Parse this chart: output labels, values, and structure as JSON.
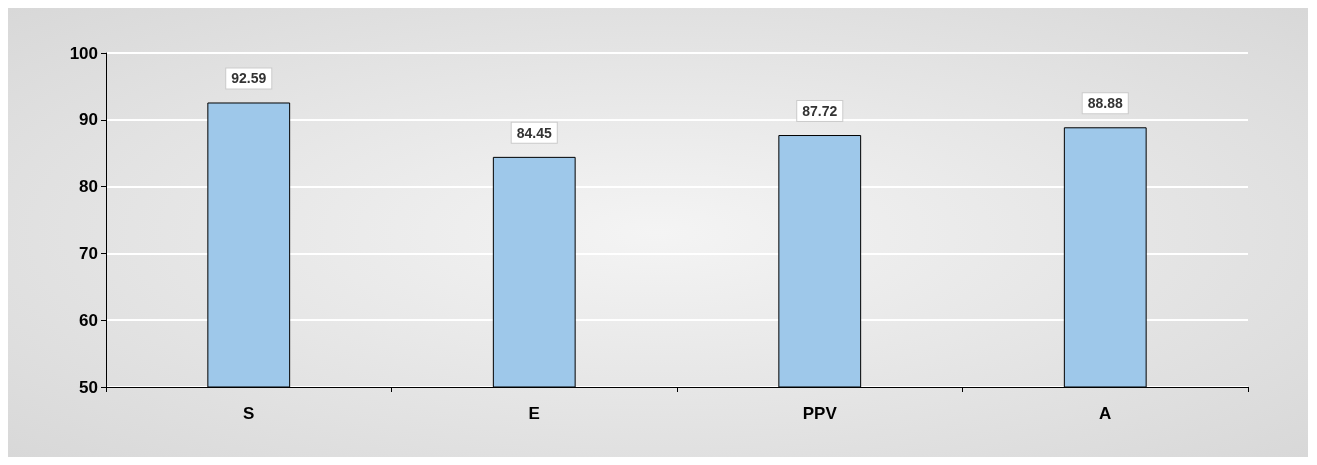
{
  "chart_data": {
    "type": "bar",
    "categories": [
      "S",
      "E",
      "PPV",
      "A"
    ],
    "values": [
      92.59,
      84.45,
      87.72,
      88.88
    ],
    "color": "#9ec8ea",
    "ylim": [
      50,
      100
    ],
    "yticks": [
      50,
      60,
      70,
      80,
      90,
      100
    ],
    "grid": "y",
    "data_labels": true
  }
}
